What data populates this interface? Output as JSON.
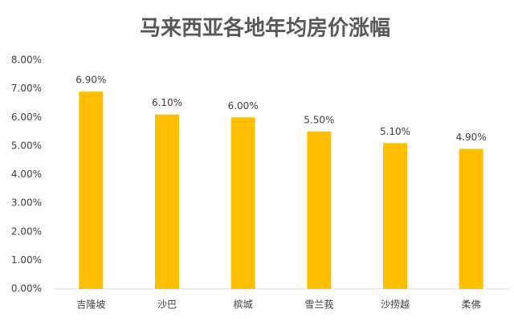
{
  "chart_data": {
    "type": "bar",
    "title": "马来西亚各地年均房价涨幅",
    "categories": [
      "吉隆坡",
      "沙巴",
      "槟城",
      "雪兰莪",
      "沙捞越",
      "柔佛"
    ],
    "values": [
      6.9,
      6.1,
      6.0,
      5.5,
      5.1,
      4.9
    ],
    "value_labels": [
      "6.90%",
      "6.10%",
      "6.00%",
      "5.50%",
      "5.10%",
      "4.90%"
    ],
    "color": "#ffbf00",
    "ylim": [
      0,
      8
    ],
    "yticks": [
      {
        "value": 0,
        "label": "0.00%"
      },
      {
        "value": 1,
        "label": "1.00%"
      },
      {
        "value": 2,
        "label": "2.00%"
      },
      {
        "value": 3,
        "label": "3.00%"
      },
      {
        "value": 4,
        "label": "4.00%"
      },
      {
        "value": 5,
        "label": "5.00%"
      },
      {
        "value": 6,
        "label": "6.00%"
      },
      {
        "value": 7,
        "label": "7.00%"
      },
      {
        "value": 8,
        "label": "8.00%"
      }
    ],
    "grid": false
  }
}
